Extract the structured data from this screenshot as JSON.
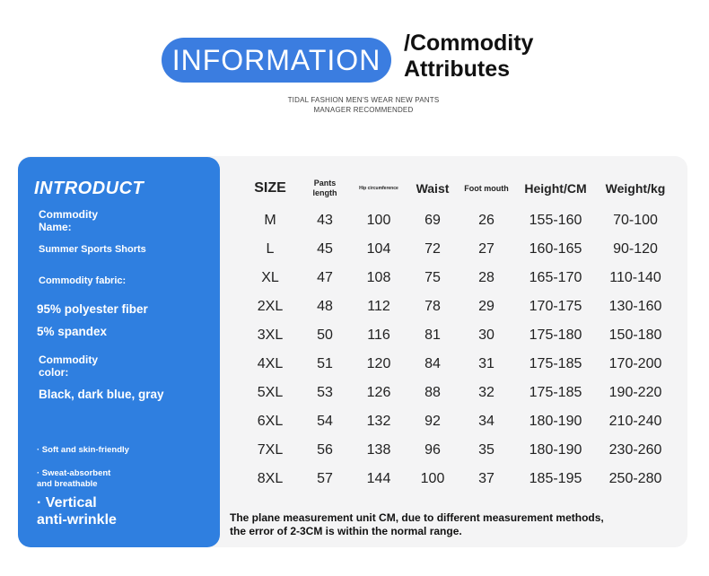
{
  "header": {
    "pill_text": "INFORMATION",
    "title_line1": "/Commodity",
    "title_line2": "Attributes",
    "caption_line1": "TIDAL FASHION MEN'S WEAR NEW PANTS",
    "caption_line2": "MANAGER RECOMMENDED"
  },
  "colors": {
    "accent_blue": "#2f7fe0",
    "panel_gray": "#f4f4f5"
  },
  "intro": {
    "heading": "INTRODUCT",
    "name_label_1": "Commodity",
    "name_label_2": "Name:",
    "name_value": "Summer Sports Shorts",
    "fabric_label": "Commodity fabric:",
    "fabric_1": "95% polyester fiber",
    "fabric_2": "5% spandex",
    "color_label_1": "Commodity",
    "color_label_2": "color:",
    "color_value": "Black, dark blue, gray",
    "feature_1": "· Soft and skin-friendly",
    "feature_2_line1": "· Sweat-absorbent",
    "feature_2_line2": "and breathable",
    "feature_3_line1": "· Vertical",
    "feature_3_line2": "anti-wrinkle"
  },
  "table": {
    "headers": {
      "size": "SIZE",
      "pants_length_1": "Pants",
      "pants_length_2": "length",
      "hip": "Hip circumference",
      "waist": "Waist",
      "foot": "Foot mouth",
      "height": "Height/CM",
      "weight": "Weight/kg"
    },
    "rows": [
      [
        "M",
        "43",
        "100",
        "69",
        "26",
        "155-160",
        "70-100"
      ],
      [
        "L",
        "45",
        "104",
        "72",
        "27",
        "160-165",
        "90-120"
      ],
      [
        "XL",
        "47",
        "108",
        "75",
        "28",
        "165-170",
        "110-140"
      ],
      [
        "2XL",
        "48",
        "112",
        "78",
        "29",
        "170-175",
        "130-160"
      ],
      [
        "3XL",
        "50",
        "116",
        "81",
        "30",
        "175-180",
        "150-180"
      ],
      [
        "4XL",
        "51",
        "120",
        "84",
        "31",
        "175-185",
        "170-200"
      ],
      [
        "5XL",
        "53",
        "126",
        "88",
        "32",
        "175-185",
        "190-220"
      ],
      [
        "6XL",
        "54",
        "132",
        "92",
        "34",
        "180-190",
        "210-240"
      ],
      [
        "7XL",
        "56",
        "138",
        "96",
        "35",
        "180-190",
        "230-260"
      ],
      [
        "8XL",
        "57",
        "144",
        "100",
        "37",
        "185-195",
        "250-280"
      ]
    ]
  },
  "note": {
    "line1": "The plane measurement unit CM, due to different measurement methods,",
    "line2": "the error of 2-3CM is within the normal range."
  }
}
